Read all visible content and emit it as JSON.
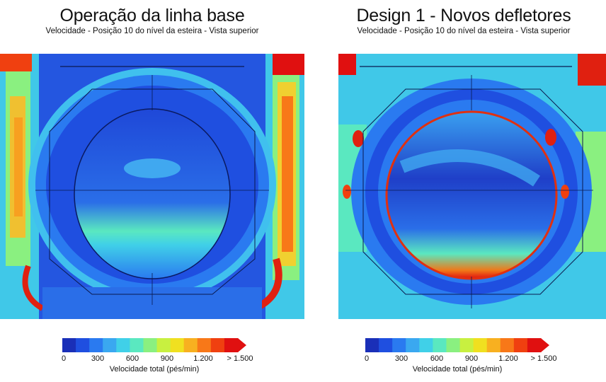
{
  "panels": [
    {
      "title": "Operação da linha base",
      "subtitle": "Velocidade - Posição 10 do nível da esteira - Vista superior"
    },
    {
      "title": "Design 1 - Novos defletores",
      "subtitle": "Velocidade - Posição 10 do nível da esteira - Vista superior"
    }
  ],
  "colorbar": {
    "label": "Velocidade total (pés/min)",
    "ticks": [
      "0",
      "300",
      "600",
      "900",
      "1.200",
      "> 1.500"
    ],
    "tick_values": [
      0,
      300,
      600,
      900,
      1200,
      1500
    ],
    "colors": [
      "#1a2fb8",
      "#1f4fe0",
      "#2a7af0",
      "#3aa8f0",
      "#40d0e8",
      "#5ae8c0",
      "#8af080",
      "#c8f040",
      "#f0e020",
      "#f8b020",
      "#f87818",
      "#f04010",
      "#e01010"
    ]
  },
  "chart_data": {
    "type": "heatmap",
    "title": "",
    "colorbar_label": "Velocidade total (pés/min)",
    "range": [
      0,
      1500
    ],
    "panels": [
      "Operação da linha base",
      "Design 1 - Novos defletores"
    ]
  }
}
